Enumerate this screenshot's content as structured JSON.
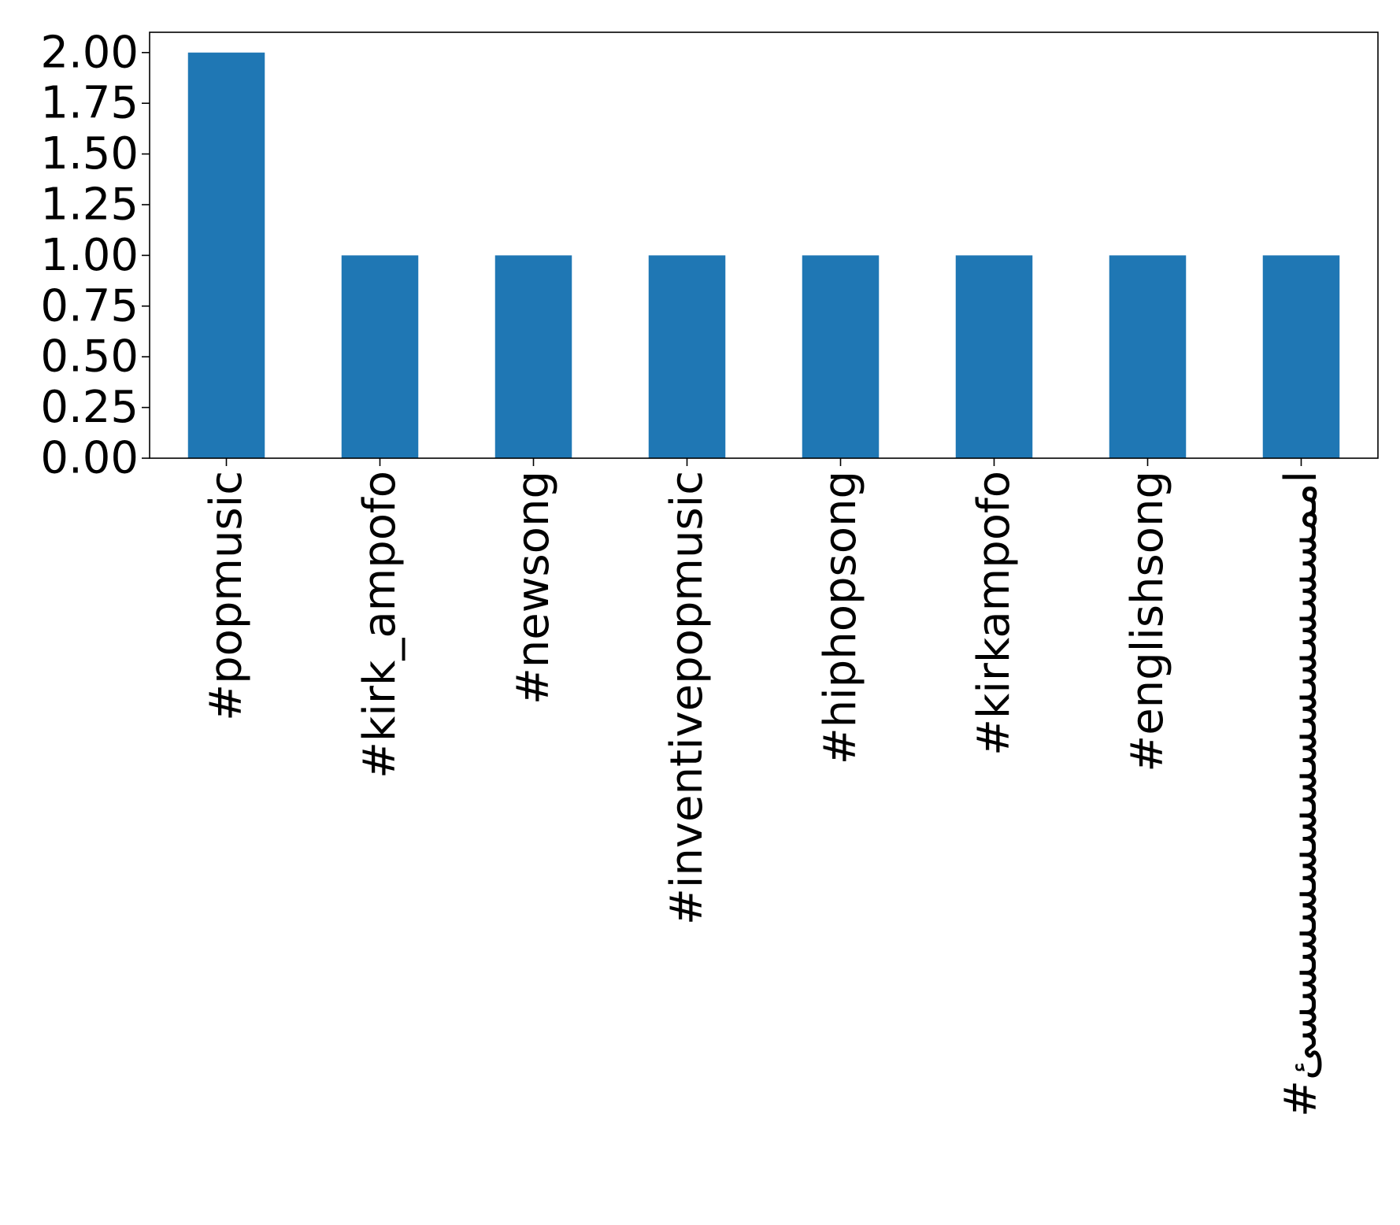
{
  "chart_data": {
    "type": "bar",
    "categories": [
      "#popmusic",
      "#kirk_ampofo",
      "#newsong",
      "#inventivepopmusic",
      "#hiphopsong",
      "#kirkampofo",
      "#englishsong",
      "#اممسسسسسسسسسسسسسئ"
    ],
    "values": [
      2,
      1,
      1,
      1,
      1,
      1,
      1,
      1
    ],
    "yticks": [
      "0.00",
      "0.25",
      "0.50",
      "0.75",
      "1.00",
      "1.25",
      "1.50",
      "1.75",
      "2.00"
    ],
    "ylim": [
      0,
      2.1
    ],
    "grid": false,
    "bar_color": "#1f77b4"
  }
}
